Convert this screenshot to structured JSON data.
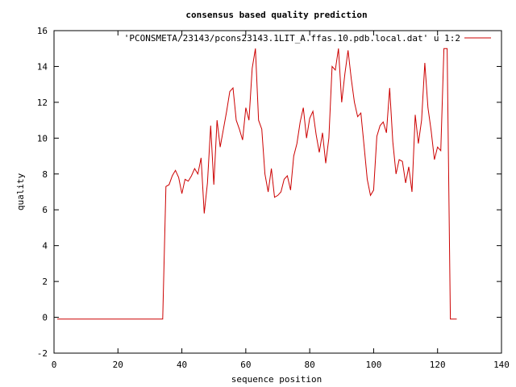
{
  "chart_data": {
    "type": "line",
    "title": "consensus based quality prediction",
    "xlabel": "sequence position",
    "ylabel": "quality",
    "xlim": [
      0,
      140
    ],
    "ylim": [
      -2,
      16
    ],
    "xticks": [
      0,
      20,
      40,
      60,
      80,
      100,
      120,
      140
    ],
    "yticks": [
      -2,
      0,
      2,
      4,
      6,
      8,
      10,
      12,
      14,
      16
    ],
    "grid": false,
    "legend_position": "top-right",
    "series": [
      {
        "name": "'PCONSMETA/23143/pcons23143.1LIT_A.ffas.10.pdb.local.dat' u 1:2",
        "color": "#cc0000",
        "x": [
          1,
          34,
          35,
          36,
          37,
          38,
          39,
          40,
          41,
          42,
          43,
          44,
          45,
          46,
          47,
          48,
          49,
          50,
          51,
          52,
          53,
          54,
          55,
          56,
          57,
          58,
          59,
          60,
          61,
          62,
          63,
          64,
          65,
          66,
          67,
          68,
          69,
          70,
          71,
          72,
          73,
          74,
          75,
          76,
          77,
          78,
          79,
          80,
          81,
          82,
          83,
          84,
          85,
          86,
          87,
          88,
          89,
          90,
          91,
          92,
          93,
          94,
          95,
          96,
          97,
          98,
          99,
          100,
          101,
          102,
          103,
          104,
          105,
          106,
          107,
          108,
          109,
          110,
          111,
          112,
          113,
          114,
          115,
          116,
          117,
          118,
          119,
          120,
          121,
          122,
          123,
          124,
          125,
          126
        ],
        "y": [
          -0.1,
          -0.1,
          7.3,
          7.4,
          7.9,
          8.2,
          7.8,
          6.9,
          7.7,
          7.6,
          7.9,
          8.3,
          8.0,
          8.9,
          5.8,
          7.5,
          10.7,
          7.4,
          11.0,
          9.5,
          10.5,
          11.5,
          12.6,
          12.8,
          11.0,
          10.5,
          9.9,
          11.7,
          11.0,
          13.9,
          15.0,
          11.0,
          10.5,
          8.0,
          7.0,
          8.3,
          6.7,
          6.8,
          7.0,
          7.7,
          7.9,
          7.1,
          9.0,
          9.7,
          10.9,
          11.7,
          10.0,
          11.1,
          11.5,
          10.2,
          9.2,
          10.3,
          8.6,
          10.0,
          14.0,
          13.8,
          15.0,
          12.0,
          13.6,
          14.9,
          13.3,
          12.0,
          11.2,
          11.4,
          9.6,
          7.7,
          6.8,
          7.1,
          10.1,
          10.7,
          10.9,
          10.3,
          12.8,
          9.8,
          8.0,
          8.8,
          8.7,
          7.5,
          8.4,
          7.0,
          11.3,
          9.7,
          11.0,
          14.2,
          11.7,
          10.4,
          8.8,
          9.5,
          9.3,
          15.0,
          15.0,
          -0.1,
          -0.1,
          -0.1
        ]
      }
    ]
  }
}
